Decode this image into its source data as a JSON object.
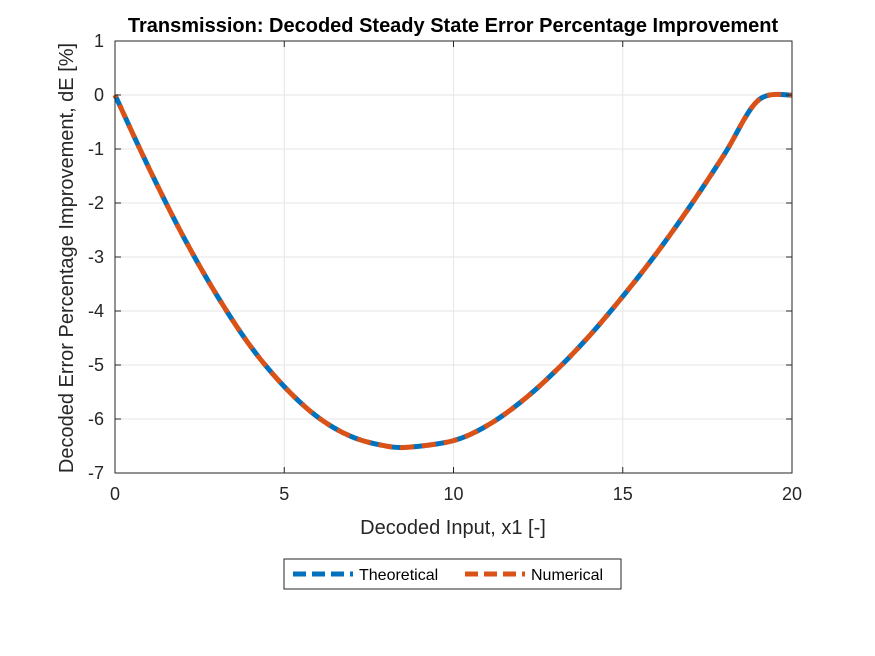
{
  "chart_data": {
    "type": "line",
    "title": "Transmission: Decoded Steady State Error Percentage Improvement",
    "xlabel": "Decoded Input, x1 [-]",
    "ylabel": "Decoded Error Percentage Improvement, dE [%]",
    "xlim": [
      0,
      20
    ],
    "ylim": [
      -7,
      1
    ],
    "xticks": [
      "0",
      "5",
      "10",
      "15",
      "20"
    ],
    "yticks": [
      "1",
      "0",
      "-1",
      "-2",
      "-3",
      "-4",
      "-5",
      "-6",
      "-7"
    ],
    "grid": true,
    "legend_position": "bottom-outside",
    "series": [
      {
        "name": "Theoretical",
        "color": "#0072BD",
        "style": "dashed",
        "x": [
          0,
          1,
          2,
          3,
          4,
          5,
          6,
          7,
          8,
          8.7,
          10,
          11,
          12,
          13,
          14,
          15,
          16,
          17,
          18,
          19,
          20
        ],
        "y": [
          0,
          -1.35,
          -2.6,
          -3.7,
          -4.65,
          -5.4,
          -5.97,
          -6.33,
          -6.5,
          -6.52,
          -6.4,
          -6.12,
          -5.68,
          -5.12,
          -4.47,
          -3.73,
          -2.93,
          -2.05,
          -1.1,
          -0.1,
          0
        ]
      },
      {
        "name": "Numerical",
        "color": "#D95319",
        "style": "dashed",
        "x": [
          0,
          1,
          2,
          3,
          4,
          5,
          6,
          7,
          8,
          8.7,
          10,
          11,
          12,
          13,
          14,
          15,
          16,
          17,
          18,
          19,
          20
        ],
        "y": [
          0,
          -1.35,
          -2.6,
          -3.7,
          -4.65,
          -5.4,
          -5.97,
          -6.33,
          -6.5,
          -6.52,
          -6.4,
          -6.12,
          -5.68,
          -5.12,
          -4.47,
          -3.73,
          -2.93,
          -2.05,
          -1.1,
          -0.1,
          0
        ]
      }
    ]
  }
}
